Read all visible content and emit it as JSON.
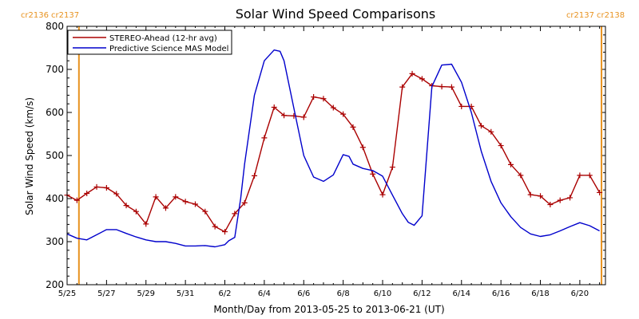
{
  "chart_data": {
    "type": "line",
    "title": "Solar Wind Speed Comparisons",
    "xlabel": "Month/Day from 2013-05-25 to 2013-06-21 (UT)",
    "ylabel": "Solar Wind Speed (km/s)",
    "xlim": [
      0,
      27.3
    ],
    "ylim": [
      200,
      800
    ],
    "yticks": [
      200,
      300,
      400,
      500,
      600,
      700,
      800
    ],
    "yticks_labels": [
      "200",
      "300",
      "400",
      "500",
      "600",
      "700",
      "800"
    ],
    "xticks": [
      {
        "day": 0,
        "label": "5/25"
      },
      {
        "day": 2,
        "label": "5/27"
      },
      {
        "day": 4,
        "label": "5/29"
      },
      {
        "day": 6,
        "label": "5/31"
      },
      {
        "day": 8,
        "label": "6/2"
      },
      {
        "day": 10,
        "label": "6/4"
      },
      {
        "day": 12,
        "label": "6/6"
      },
      {
        "day": 14,
        "label": "6/8"
      },
      {
        "day": 16,
        "label": "6/10"
      },
      {
        "day": 18,
        "label": "6/12"
      },
      {
        "day": 20,
        "label": "6/14"
      },
      {
        "day": 22,
        "label": "6/16"
      },
      {
        "day": 24,
        "label": "6/18"
      },
      {
        "day": 26,
        "label": "6/20"
      }
    ],
    "carrington_markers": [
      {
        "day": 0.6,
        "left_label": "cr2136",
        "right_label": "cr2137"
      },
      {
        "day": 27.1,
        "left_label": "cr2137",
        "right_label": "cr2138"
      }
    ],
    "legend_position": "top-left",
    "series": [
      {
        "name": "STEREO-Ahead (12-hr avg)",
        "color": "#aa0000",
        "marker": "plus",
        "x": [
          0.0,
          0.5,
          1.0,
          1.5,
          2.0,
          2.5,
          3.0,
          3.5,
          4.0,
          4.5,
          5.0,
          5.5,
          6.0,
          6.5,
          7.0,
          7.5,
          8.0,
          8.5,
          9.0,
          9.5,
          10.0,
          10.5,
          11.0,
          11.5,
          12.0,
          12.5,
          13.0,
          13.5,
          14.0,
          14.5,
          15.0,
          15.5,
          16.0,
          16.5,
          17.0,
          17.5,
          18.0,
          18.5,
          19.0,
          19.5,
          20.0,
          20.5,
          21.0,
          21.5,
          22.0,
          22.5,
          23.0,
          23.5,
          24.0,
          24.5,
          25.0,
          25.5,
          26.0,
          26.5,
          27.0
        ],
        "y": [
          408,
          396,
          412,
          427,
          425,
          411,
          384,
          370,
          341,
          404,
          378,
          404,
          393,
          387,
          370,
          335,
          323,
          365,
          390,
          453,
          541,
          612,
          593,
          592,
          589,
          636,
          632,
          611,
          596,
          566,
          519,
          457,
          409,
          473,
          659,
          690,
          678,
          662,
          660,
          659,
          614,
          614,
          569,
          555,
          523,
          479,
          454,
          409,
          406,
          386,
          396,
          402,
          454,
          454,
          414
        ]
      },
      {
        "name": "Predictive Science MAS Model",
        "color": "#0000cc",
        "marker": "none",
        "x": [
          0.0,
          0.5,
          1.0,
          1.5,
          2.0,
          2.5,
          3.0,
          3.5,
          4.0,
          4.5,
          5.0,
          5.5,
          6.0,
          6.5,
          7.0,
          7.5,
          8.0,
          8.2,
          8.5,
          8.8,
          9.0,
          9.5,
          10.0,
          10.5,
          10.8,
          11.0,
          11.5,
          12.0,
          12.5,
          13.0,
          13.5,
          14.0,
          14.3,
          14.5,
          15.0,
          15.5,
          16.0,
          16.5,
          17.0,
          17.3,
          17.6,
          18.0,
          18.5,
          19.0,
          19.5,
          20.0,
          20.5,
          21.0,
          21.5,
          22.0,
          22.5,
          23.0,
          23.5,
          24.0,
          24.5,
          25.0,
          25.5,
          26.0,
          26.5,
          27.0
        ],
        "y": [
          318,
          308,
          304,
          316,
          328,
          328,
          319,
          311,
          304,
          300,
          300,
          296,
          290,
          290,
          291,
          288,
          293,
          302,
          310,
          400,
          480,
          640,
          720,
          745,
          742,
          720,
          610,
          500,
          450,
          440,
          455,
          502,
          498,
          480,
          470,
          465,
          452,
          408,
          365,
          345,
          338,
          360,
          660,
          710,
          712,
          670,
          600,
          510,
          440,
          390,
          358,
          333,
          318,
          312,
          316,
          325,
          335,
          344,
          337,
          325
        ]
      }
    ]
  }
}
